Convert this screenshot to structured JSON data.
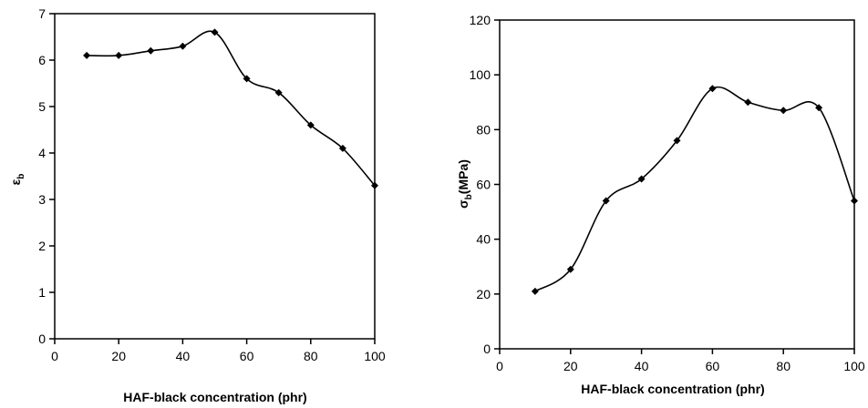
{
  "chart_data": [
    {
      "type": "line",
      "xlabel": "HAF-black concentration (phr)",
      "ylabel": "ε",
      "ylabel_sub": "b",
      "xlim": [
        0,
        100
      ],
      "ylim": [
        0,
        7
      ],
      "xticks": [
        0,
        20,
        40,
        60,
        80,
        100
      ],
      "yticks": [
        0,
        1,
        2,
        3,
        4,
        5,
        6,
        7
      ],
      "grid": false,
      "series": [
        {
          "x": [
            10,
            20,
            30,
            40,
            50,
            60,
            70,
            80,
            90,
            100
          ],
          "y": [
            6.1,
            6.1,
            6.2,
            6.3,
            6.6,
            5.6,
            5.3,
            4.6,
            4.1,
            3.3
          ]
        }
      ]
    },
    {
      "type": "line",
      "xlabel": "HAF-black concentration (phr)",
      "ylabel": "σ",
      "ylabel_sub": "b",
      "ylabel_unit": "(MPa)",
      "xlim": [
        0,
        100
      ],
      "ylim": [
        0,
        120
      ],
      "xticks": [
        0,
        20,
        40,
        60,
        80,
        100
      ],
      "yticks": [
        0,
        20,
        40,
        60,
        80,
        100,
        120
      ],
      "grid": false,
      "series": [
        {
          "x": [
            10,
            20,
            30,
            40,
            50,
            60,
            70,
            80,
            90,
            100
          ],
          "y": [
            21,
            29,
            54,
            62,
            76,
            95,
            90,
            87,
            88,
            54
          ]
        }
      ]
    }
  ]
}
